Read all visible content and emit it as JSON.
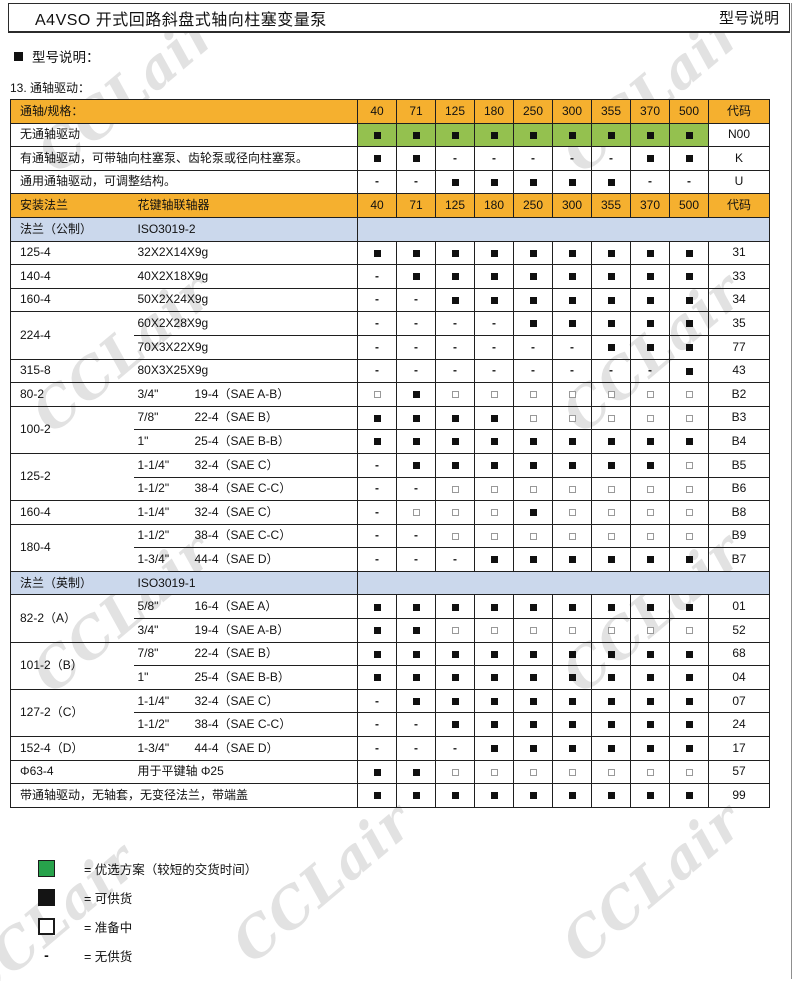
{
  "page": {
    "title_left": "A4VSO 开式回路斜盘式轴向柱塞变量泵",
    "title_right": "型号说明",
    "section_heading": "型号说明：",
    "subsection": "13. 通轴驱动：",
    "watermark": "CCLair"
  },
  "colors": {
    "header_orange": "#F5B02F",
    "preferred_green_cell": "#94C14F",
    "section_blue": "#CBD8EC",
    "legend_green": "#27A24B"
  },
  "table": {
    "size_columns": [
      "40",
      "71",
      "125",
      "180",
      "250",
      "300",
      "355",
      "370",
      "500"
    ],
    "code_header": "代码",
    "rows": [
      {
        "type": "header",
        "label": "通轴/规格："
      },
      {
        "type": "drive",
        "label": "无通轴驱动",
        "cells": "GGGGGGGGG",
        "code": "N00"
      },
      {
        "type": "drive",
        "label": "有通轴驱动，可带轴向柱塞泵、齿轮泵或径向柱塞泵。",
        "cells": "FF-----FF",
        "code": "K"
      },
      {
        "type": "drive",
        "label": "通用通轴驱动，可调整结构。",
        "cells": "--FFFFF--",
        "code": "U"
      },
      {
        "type": "header2",
        "c1": "安装法兰",
        "c2": "花键轴联轴器"
      },
      {
        "type": "section",
        "c1": "法兰（公制）",
        "c2": "ISO3019-2"
      },
      {
        "type": "flange",
        "flange": "125-4",
        "span": 1,
        "spline": "32X2X14X9g",
        "cells": "FFFFFFFFF",
        "code": "31"
      },
      {
        "type": "flange",
        "flange": "140-4",
        "span": 1,
        "spline": "40X2X18X9g",
        "cells": "-FFFFFFFF",
        "code": "33"
      },
      {
        "type": "flange",
        "flange": "160-4",
        "span": 1,
        "spline": "50X2X24X9g",
        "cells": "--FFFFFFF",
        "code": "34"
      },
      {
        "type": "flange",
        "flange": "224-4",
        "span": 2,
        "spline": "60X2X28X9g",
        "cells": "----FFFFF",
        "code": "35"
      },
      {
        "type": "flange",
        "flange": null,
        "spline": "70X3X22X9g",
        "cells": "------FFF",
        "code": "77"
      },
      {
        "type": "flange",
        "flange": "315-8",
        "span": 1,
        "spline": "80X3X25X9g",
        "cells": "--------F",
        "code": "43"
      },
      {
        "type": "sae",
        "flange": "80-2",
        "span": 1,
        "shaft": "3/4\"",
        "spline": "19-4（SAE A-B）",
        "cells": "OFOOOOOOO",
        "code": "B2"
      },
      {
        "type": "sae",
        "flange": "100-2",
        "span": 2,
        "shaft": "7/8\"",
        "spline": "22-4（SAE B）",
        "cells": "FFFFOOOOO",
        "code": "B3"
      },
      {
        "type": "sae",
        "flange": null,
        "shaft": "1\"",
        "spline": "25-4（SAE B-B）",
        "cells": "FFFFFFFFF",
        "code": "B4"
      },
      {
        "type": "sae",
        "flange": "125-2",
        "span": 2,
        "shaft": "1-1/4\"",
        "spline": "32-4（SAE C）",
        "cells": "-FFFFFFFO",
        "code": "B5"
      },
      {
        "type": "sae",
        "flange": null,
        "shaft": "1-1/2\"",
        "spline": "38-4（SAE C-C）",
        "cells": "--OOOOOOO",
        "code": "B6"
      },
      {
        "type": "sae",
        "flange": "160-4",
        "span": 1,
        "shaft": "1-1/4\"",
        "spline": "32-4（SAE C）",
        "cells": "-OOOFOOOO",
        "code": "B8"
      },
      {
        "type": "sae",
        "flange": "180-4",
        "span": 2,
        "shaft": "1-1/2\"",
        "spline": "38-4（SAE C-C）",
        "cells": "--OOOOOOO",
        "code": "B9"
      },
      {
        "type": "sae",
        "flange": null,
        "shaft": "1-3/4\"",
        "spline": "44-4（SAE D）",
        "cells": "---FFFFFF",
        "code": "B7"
      },
      {
        "type": "section",
        "c1": "法兰（英制）",
        "c2": "ISO3019-1"
      },
      {
        "type": "sae",
        "flange": "82-2（A）",
        "span": 2,
        "shaft": "5/8\"",
        "spline": "16-4（SAE A）",
        "cells": "FFFFFFFFF",
        "code": "01"
      },
      {
        "type": "sae",
        "flange": null,
        "shaft": "3/4\"",
        "spline": "19-4（SAE A-B）",
        "cells": "FFOOOOOOO",
        "code": "52"
      },
      {
        "type": "sae",
        "flange": "101-2（B）",
        "span": 2,
        "shaft": "7/8\"",
        "spline": "22-4（SAE B）",
        "cells": "FFFFFFFFF",
        "code": "68"
      },
      {
        "type": "sae",
        "flange": null,
        "shaft": "1\"",
        "spline": "25-4（SAE B-B）",
        "cells": "FFFFFFFFF",
        "code": "04"
      },
      {
        "type": "sae",
        "flange": "127-2（C）",
        "span": 2,
        "shaft": "1-1/4\"",
        "spline": "32-4（SAE C）",
        "cells": "-FFFFFFFF",
        "code": "07"
      },
      {
        "type": "sae",
        "flange": null,
        "shaft": "1-1/2\"",
        "spline": "38-4（SAE C-C）",
        "cells": "--FFFFFFF",
        "code": "24"
      },
      {
        "type": "sae",
        "flange": "152-4（D）",
        "span": 1,
        "shaft": "1-3/4\"",
        "spline": "44-4（SAE D）",
        "cells": "---FFFFFF",
        "code": "17"
      },
      {
        "type": "flange",
        "flange": "Φ63-4",
        "span": 1,
        "spline": "用于平键轴  Φ25",
        "cells": "FFOOOOOOO",
        "code": "57"
      },
      {
        "type": "full",
        "label": "带通轴驱动，无轴套，无变径法兰，带端盖",
        "cells": "FFFFFFFFF",
        "code": "99"
      }
    ]
  },
  "legend": {
    "items": [
      {
        "symbol": "preferred-green-square",
        "text": "= 优选方案（较短的交货时间）"
      },
      {
        "symbol": "filled-black-square",
        "text": "= 可供货"
      },
      {
        "symbol": "hollow-square",
        "text": "= 准备中"
      },
      {
        "symbol": "dash",
        "text": "= 无供货"
      }
    ]
  }
}
